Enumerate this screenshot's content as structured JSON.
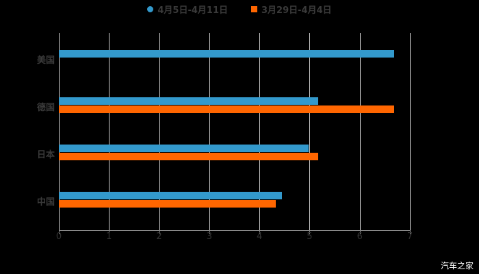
{
  "chart_data": {
    "type": "bar",
    "orientation": "horizontal",
    "categories": [
      "美国",
      "德国",
      "日本",
      "中国"
    ],
    "series": [
      {
        "name": "4月5日-4月11日",
        "color": "#3399cc",
        "values": [
          6.68,
          5.17,
          4.98,
          4.45
        ]
      },
      {
        "name": "3月29日-4月4日",
        "color": "#ff6600",
        "values": [
          null,
          6.68,
          5.17,
          4.32
        ]
      }
    ],
    "xticks": [
      "0",
      "1",
      "2",
      "3",
      "4",
      "5",
      "6",
      "7"
    ],
    "xlim": [
      0,
      7
    ],
    "grid": true,
    "legend_position": "top"
  },
  "legend": {
    "s1": "4月5日-4月11日",
    "s2": "3月29日-4月4日"
  },
  "watermark": "汽车之家"
}
